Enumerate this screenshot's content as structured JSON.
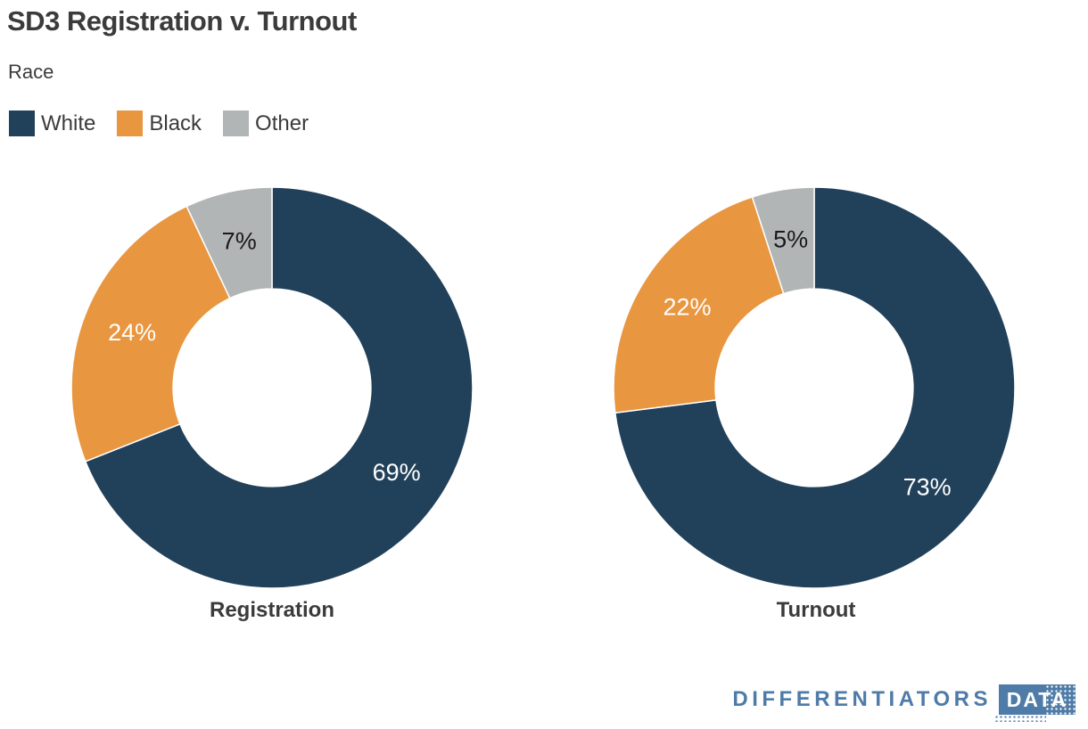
{
  "page": {
    "background_color": "#ffffff",
    "text_color": "#3b3b3b"
  },
  "header": {
    "title": "SD3 Registration v. Turnout",
    "subtitle": "Race"
  },
  "legend": {
    "items": [
      {
        "label": "White",
        "color": "#21405a"
      },
      {
        "label": "Black",
        "color": "#e99640"
      },
      {
        "label": "Other",
        "color": "#b1b5b5"
      }
    ]
  },
  "chart_data": {
    "type": "pie",
    "subtype": "donut",
    "title": "SD3 Registration v. Turnout",
    "subtitle": "Race",
    "categories": [
      "White",
      "Black",
      "Other"
    ],
    "series_colors": [
      "#21405a",
      "#e99640",
      "#b1b5b5"
    ],
    "slice_label_colors": [
      "#ffffff",
      "#ffffff",
      "#1a1a1a"
    ],
    "legend_position": "top-left",
    "start_angle_deg": 0,
    "direction": "clockwise",
    "inner_radius_ratio": 0.493,
    "label_radius_ratio": 0.75,
    "charts": [
      {
        "label": "Registration",
        "values": [
          69,
          24,
          7
        ],
        "value_labels": [
          "69%",
          "24%",
          "7%"
        ]
      },
      {
        "label": "Turnout",
        "values": [
          73,
          22,
          5
        ],
        "value_labels": [
          "73%",
          "22%",
          "5%"
        ]
      }
    ]
  },
  "footer": {
    "brand_primary": "DIFFERENTIATORS",
    "brand_secondary": "DATA",
    "brand_color": "#4e7ba7"
  }
}
